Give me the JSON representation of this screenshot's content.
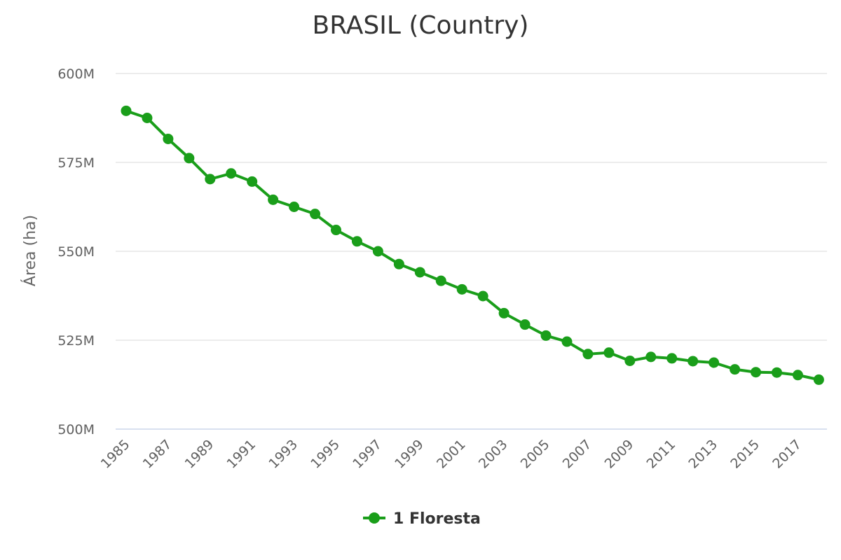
{
  "chart_data": {
    "type": "line",
    "title": "BRASIL (Country)",
    "xlabel": "",
    "ylabel": "Área (ha)",
    "x": [
      1985,
      1986,
      1987,
      1988,
      1989,
      1990,
      1991,
      1992,
      1993,
      1994,
      1995,
      1996,
      1997,
      1998,
      1999,
      2000,
      2001,
      2002,
      2003,
      2004,
      2005,
      2006,
      2007,
      2008,
      2009,
      2010,
      2011,
      2012,
      2013,
      2014,
      2015,
      2016,
      2017,
      2018
    ],
    "x_tick_labels": [
      "1985",
      "1987",
      "1989",
      "1991",
      "1993",
      "1995",
      "1997",
      "1999",
      "2001",
      "2003",
      "2005",
      "2007",
      "2009",
      "2011",
      "2013",
      "2015",
      "2017"
    ],
    "series": [
      {
        "name": "1 Floresta",
        "color": "#1a9e1a",
        "values": [
          589.5,
          587.5,
          581.6,
          576.2,
          570.3,
          571.9,
          569.6,
          564.5,
          562.5,
          560.5,
          556.0,
          552.8,
          550.0,
          546.4,
          544.1,
          541.7,
          539.3,
          537.4,
          532.6,
          529.4,
          526.3,
          524.6,
          521.1,
          521.5,
          519.2,
          520.3,
          519.9,
          519.1,
          518.7,
          516.8,
          516.0,
          515.9,
          515.2,
          513.9
        ]
      }
    ],
    "value_unit": "M",
    "ylim": [
      500,
      600
    ],
    "y_ticks": [
      500,
      525,
      550,
      575,
      600
    ],
    "y_tick_labels": [
      "500M",
      "525M",
      "550M",
      "575M",
      "600M"
    ],
    "grid": true,
    "legend": "bottom-center"
  }
}
